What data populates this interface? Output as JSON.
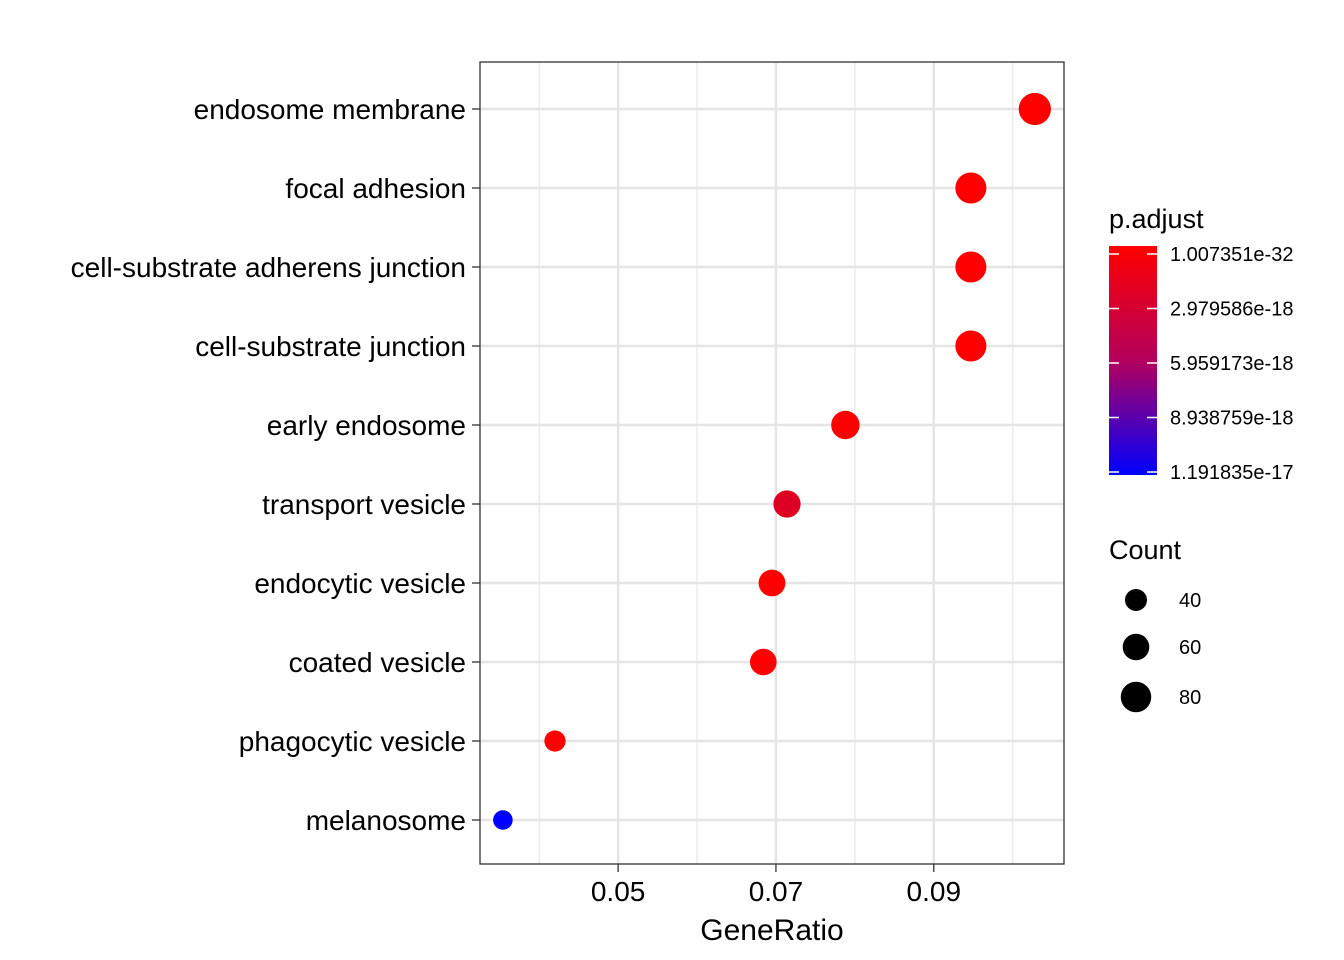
{
  "chart_data": {
    "type": "scatter",
    "title": "",
    "xlabel": "GeneRatio",
    "ylabel": "",
    "xlim": [
      0.0325,
      0.1065
    ],
    "xticks": [
      0.05,
      0.07,
      0.09
    ],
    "xtick_labels": [
      "0.05",
      "0.07",
      "0.09"
    ],
    "grid": true,
    "categories": [
      "endosome membrane",
      "focal adhesion",
      "cell-substrate adherens junction",
      "cell-substrate junction",
      "early endosome",
      "transport vesicle",
      "endocytic vesicle",
      "coated vesicle",
      "phagocytic vesicle",
      "melanosome"
    ],
    "points": [
      {
        "term": "endosome membrane",
        "gene_ratio": 0.1028,
        "count": 90,
        "p_adjust": 1.007351e-32
      },
      {
        "term": "focal adhesion",
        "gene_ratio": 0.0947,
        "count": 83,
        "p_adjust": 1.5e-31
      },
      {
        "term": "cell-substrate adherens junction",
        "gene_ratio": 0.0947,
        "count": 83,
        "p_adjust": 1.5e-31
      },
      {
        "term": "cell-substrate junction",
        "gene_ratio": 0.0947,
        "count": 83,
        "p_adjust": 1.6e-31
      },
      {
        "term": "early endosome",
        "gene_ratio": 0.0788,
        "count": 69,
        "p_adjust": 3e-20
      },
      {
        "term": "transport vesicle",
        "gene_ratio": 0.0714,
        "count": 63,
        "p_adjust": 1.6e-18
      },
      {
        "term": "endocytic vesicle",
        "gene_ratio": 0.0695,
        "count": 61,
        "p_adjust": 2e-20
      },
      {
        "term": "coated vesicle",
        "gene_ratio": 0.0684,
        "count": 60,
        "p_adjust": 1e-20
      },
      {
        "term": "phagocytic vesicle",
        "gene_ratio": 0.042,
        "count": 37,
        "p_adjust": 1e-20
      },
      {
        "term": "melanosome",
        "gene_ratio": 0.0354,
        "count": 31,
        "p_adjust": 1.191835e-17
      }
    ],
    "color_legend": {
      "title": "p.adjust",
      "min": 1.007351e-32,
      "max": 1.191835e-17,
      "low_color": "#ff0000",
      "high_color": "#0000ff",
      "labels": [
        "1.007351e-32",
        "2.979586e-18",
        "5.959173e-18",
        "8.938759e-18",
        "1.191835e-17"
      ],
      "values": [
        1.007351e-32,
        2.979586e-18,
        5.959173e-18,
        8.938759e-18,
        1.191835e-17
      ]
    },
    "size_legend": {
      "title": "Count",
      "labels": [
        "40",
        "60",
        "80"
      ],
      "values": [
        40,
        60,
        80
      ]
    },
    "legend_position": "right"
  }
}
